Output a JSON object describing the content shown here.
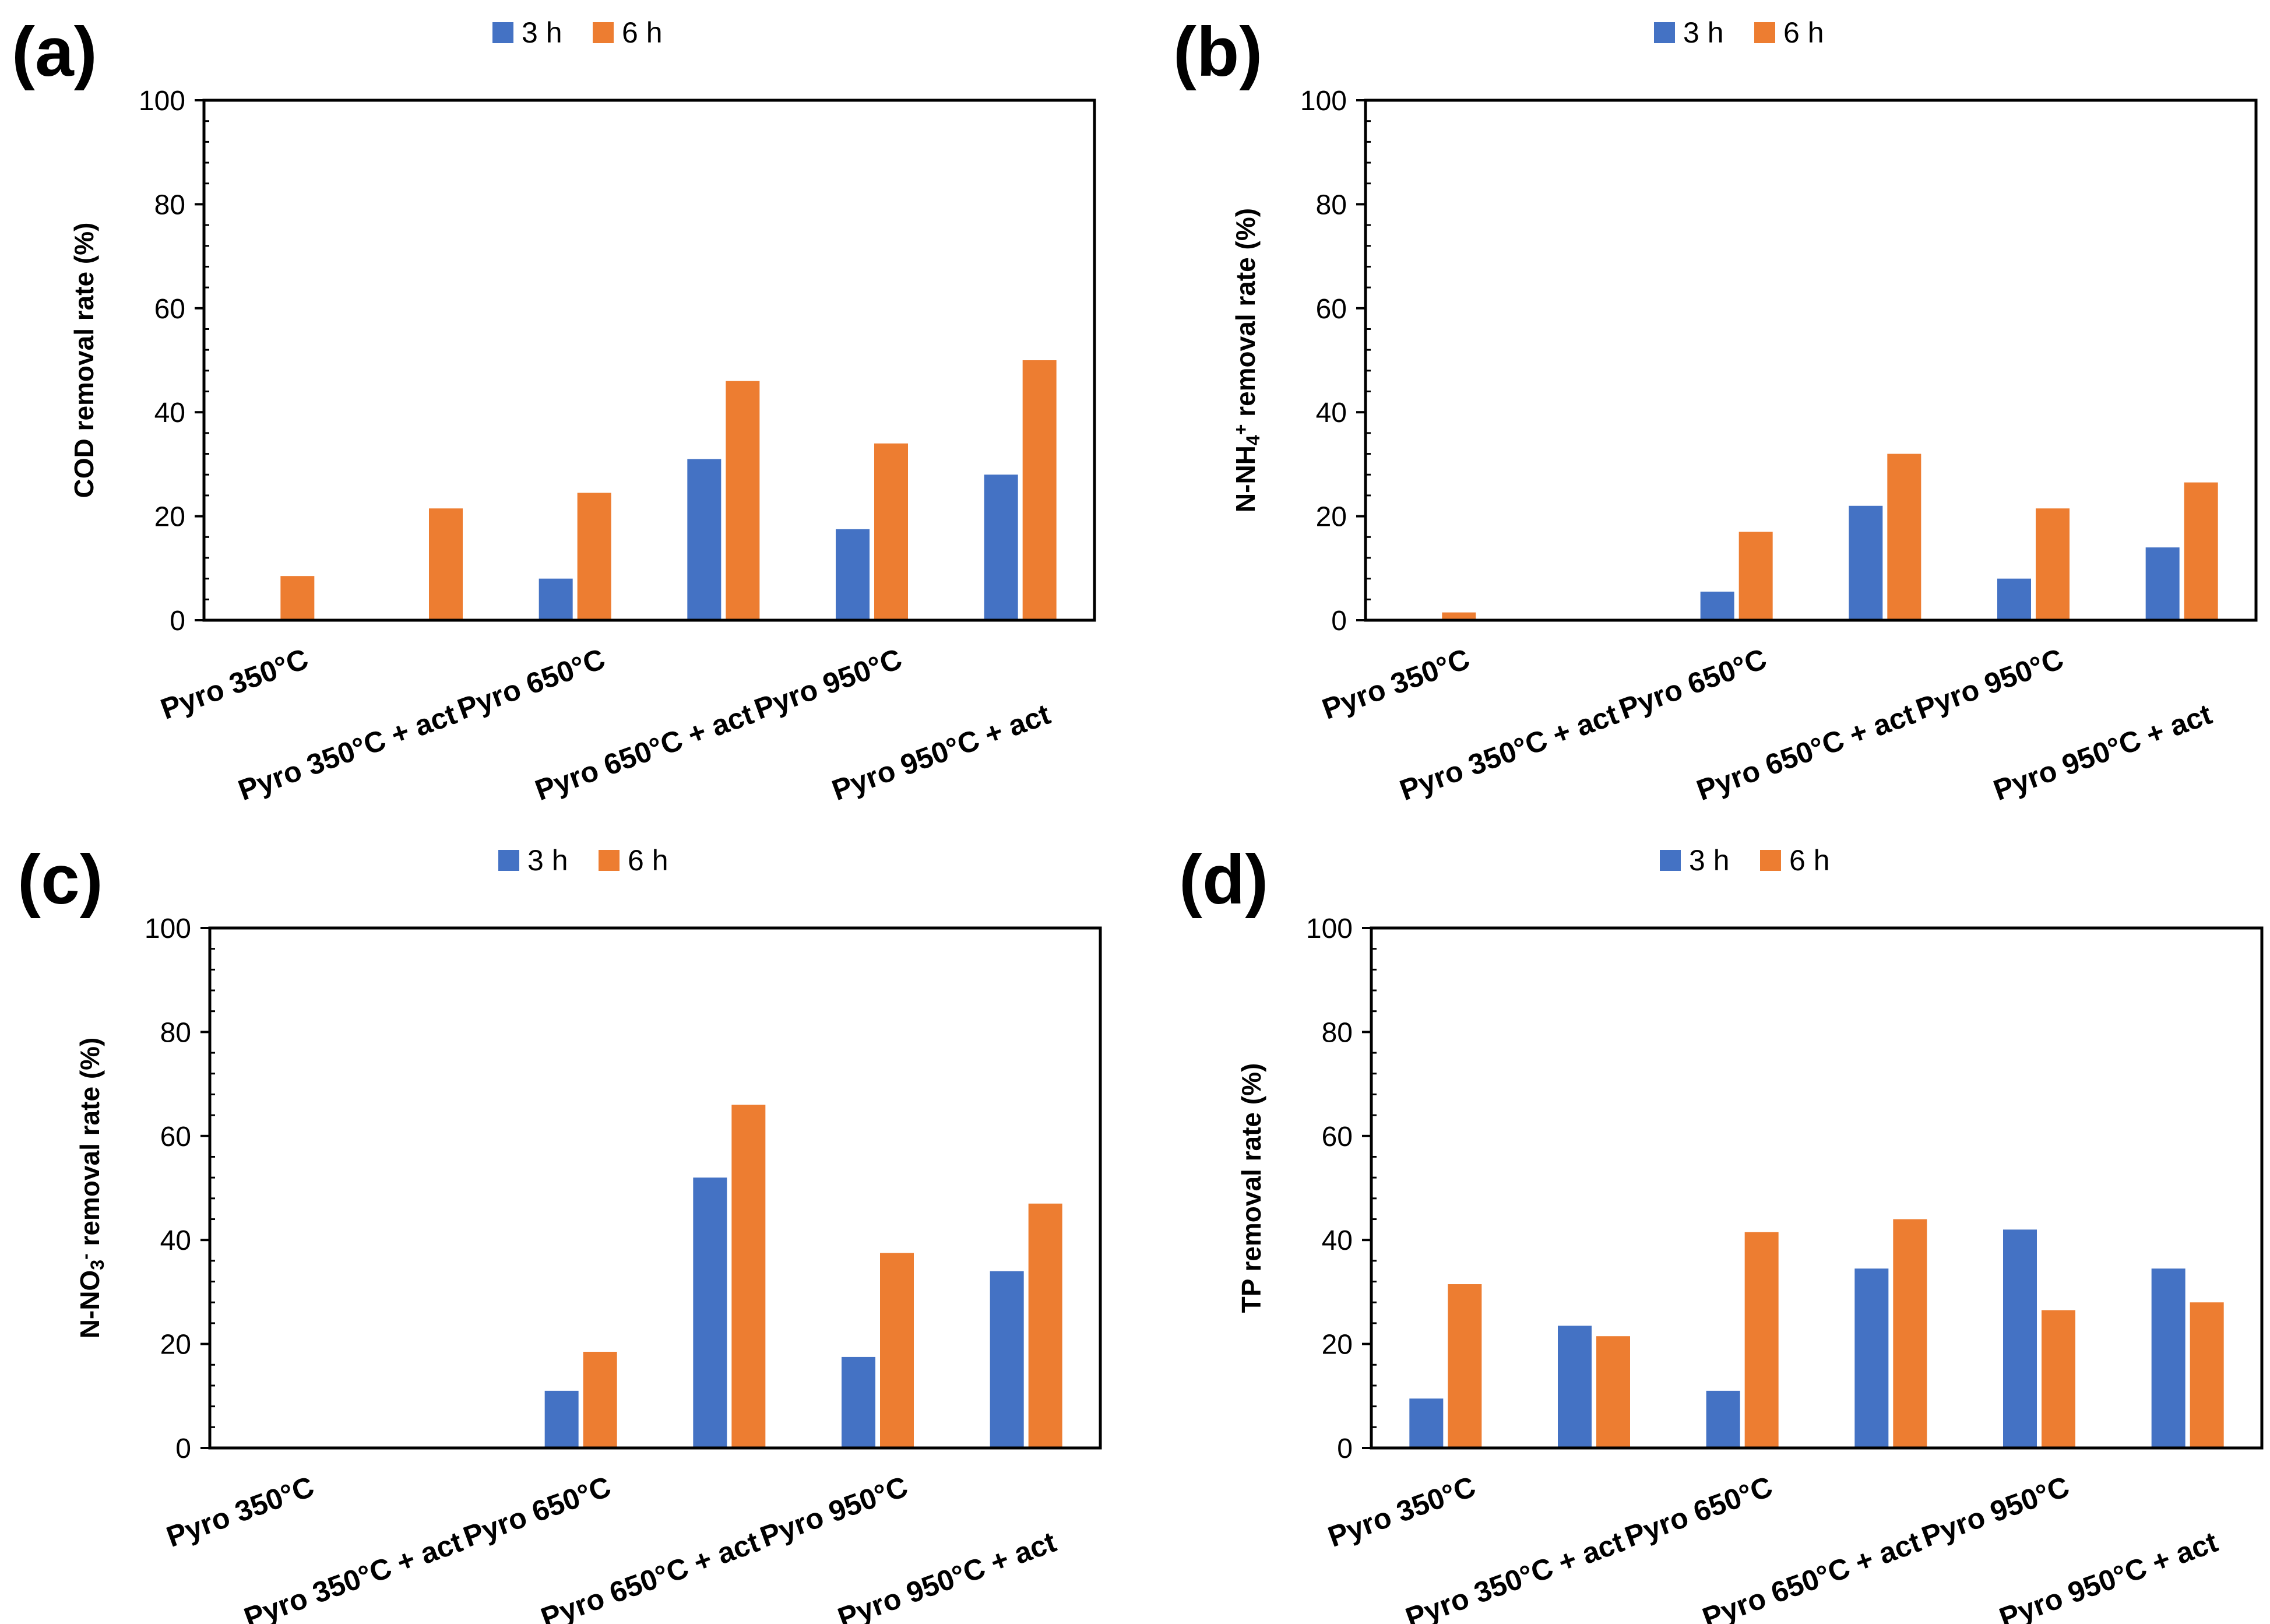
{
  "chart_data": [
    {
      "type": "bar",
      "panel": "(a)",
      "title": "",
      "xlabel": "",
      "ylabel": "COD removal rate (%)",
      "ylabel_parts": [
        {
          "t": "COD removal rate (%)",
          "s": ""
        }
      ],
      "ylim": [
        0,
        100
      ],
      "yticks": [
        "0",
        "20",
        "40",
        "60",
        "80",
        "100"
      ],
      "grid": false,
      "legend": "top-center",
      "categories": [
        "Pyro 350°C",
        "Pyro 350°C + act",
        "Pyro 650°C",
        "Pyro 650°C + act",
        "Pyro 950°C",
        "Pyro 950°C + act"
      ],
      "series": [
        {
          "name": "3 h",
          "color": "#4472C4",
          "values": [
            0,
            0,
            8,
            31,
            17.5,
            28
          ]
        },
        {
          "name": "6 h",
          "color": "#ED7D31",
          "values": [
            8.5,
            21.5,
            24.5,
            46,
            34,
            50
          ]
        }
      ]
    },
    {
      "type": "bar",
      "panel": "(b)",
      "title": "",
      "xlabel": "",
      "ylabel": "N-NH4+ removal rate (%)",
      "ylabel_parts": [
        {
          "t": "N-NH",
          "s": ""
        },
        {
          "t": "4",
          "s": "sub"
        },
        {
          "t": "+",
          "s": "sup"
        },
        {
          "t": " removal rate (%)",
          "s": ""
        }
      ],
      "ylim": [
        0,
        100
      ],
      "yticks": [
        "0",
        "20",
        "40",
        "60",
        "80",
        "100"
      ],
      "grid": false,
      "legend": "top-center",
      "categories": [
        "Pyro 350°C",
        "Pyro 350°C + act",
        "Pyro 650°C",
        "Pyro 650°C + act",
        "Pyro 950°C",
        "Pyro 950°C + act"
      ],
      "series": [
        {
          "name": "3 h",
          "color": "#4472C4",
          "values": [
            0,
            0,
            5.5,
            22,
            8,
            14
          ]
        },
        {
          "name": "6 h",
          "color": "#ED7D31",
          "values": [
            1.5,
            0,
            17,
            32,
            21.5,
            26.5
          ]
        }
      ]
    },
    {
      "type": "bar",
      "panel": "(c)",
      "title": "",
      "xlabel": "",
      "ylabel": "N-NO3- removal rate (%)",
      "ylabel_parts": [
        {
          "t": "N-NO",
          "s": ""
        },
        {
          "t": "3",
          "s": "sub"
        },
        {
          "t": "-",
          "s": "sup"
        },
        {
          "t": " removal rate (%)",
          "s": ""
        }
      ],
      "ylim": [
        0,
        100
      ],
      "yticks": [
        "0",
        "20",
        "40",
        "60",
        "80",
        "100"
      ],
      "grid": false,
      "legend": "top-center",
      "categories": [
        "Pyro 350°C",
        "Pyro 350°C + act",
        "Pyro 650°C",
        "Pyro 650°C + act",
        "Pyro 950°C",
        "Pyro 950°C + act"
      ],
      "series": [
        {
          "name": "3 h",
          "color": "#4472C4",
          "values": [
            0,
            0,
            11,
            52,
            17.5,
            34
          ]
        },
        {
          "name": "6 h",
          "color": "#ED7D31",
          "values": [
            0,
            0,
            18.5,
            66,
            37.5,
            47
          ]
        }
      ]
    },
    {
      "type": "bar",
      "panel": "(d)",
      "title": "",
      "xlabel": "",
      "ylabel": "TP removal rate (%)",
      "ylabel_parts": [
        {
          "t": "TP removal rate (%)",
          "s": ""
        }
      ],
      "ylim": [
        0,
        100
      ],
      "yticks": [
        "0",
        "20",
        "40",
        "60",
        "80",
        "100"
      ],
      "grid": false,
      "legend": "top-center",
      "categories": [
        "Pyro 350°C",
        "Pyro 350°C + act",
        "Pyro 650°C",
        "Pyro 650°C + act",
        "Pyro 950°C",
        "Pyro 950°C + act"
      ],
      "series": [
        {
          "name": "3 h",
          "color": "#4472C4",
          "values": [
            9.5,
            23.5,
            11,
            34.5,
            42,
            34.5
          ]
        },
        {
          "name": "6 h",
          "color": "#ED7D31",
          "values": [
            31.5,
            21.5,
            41.5,
            44,
            26.5,
            28
          ]
        }
      ]
    }
  ]
}
